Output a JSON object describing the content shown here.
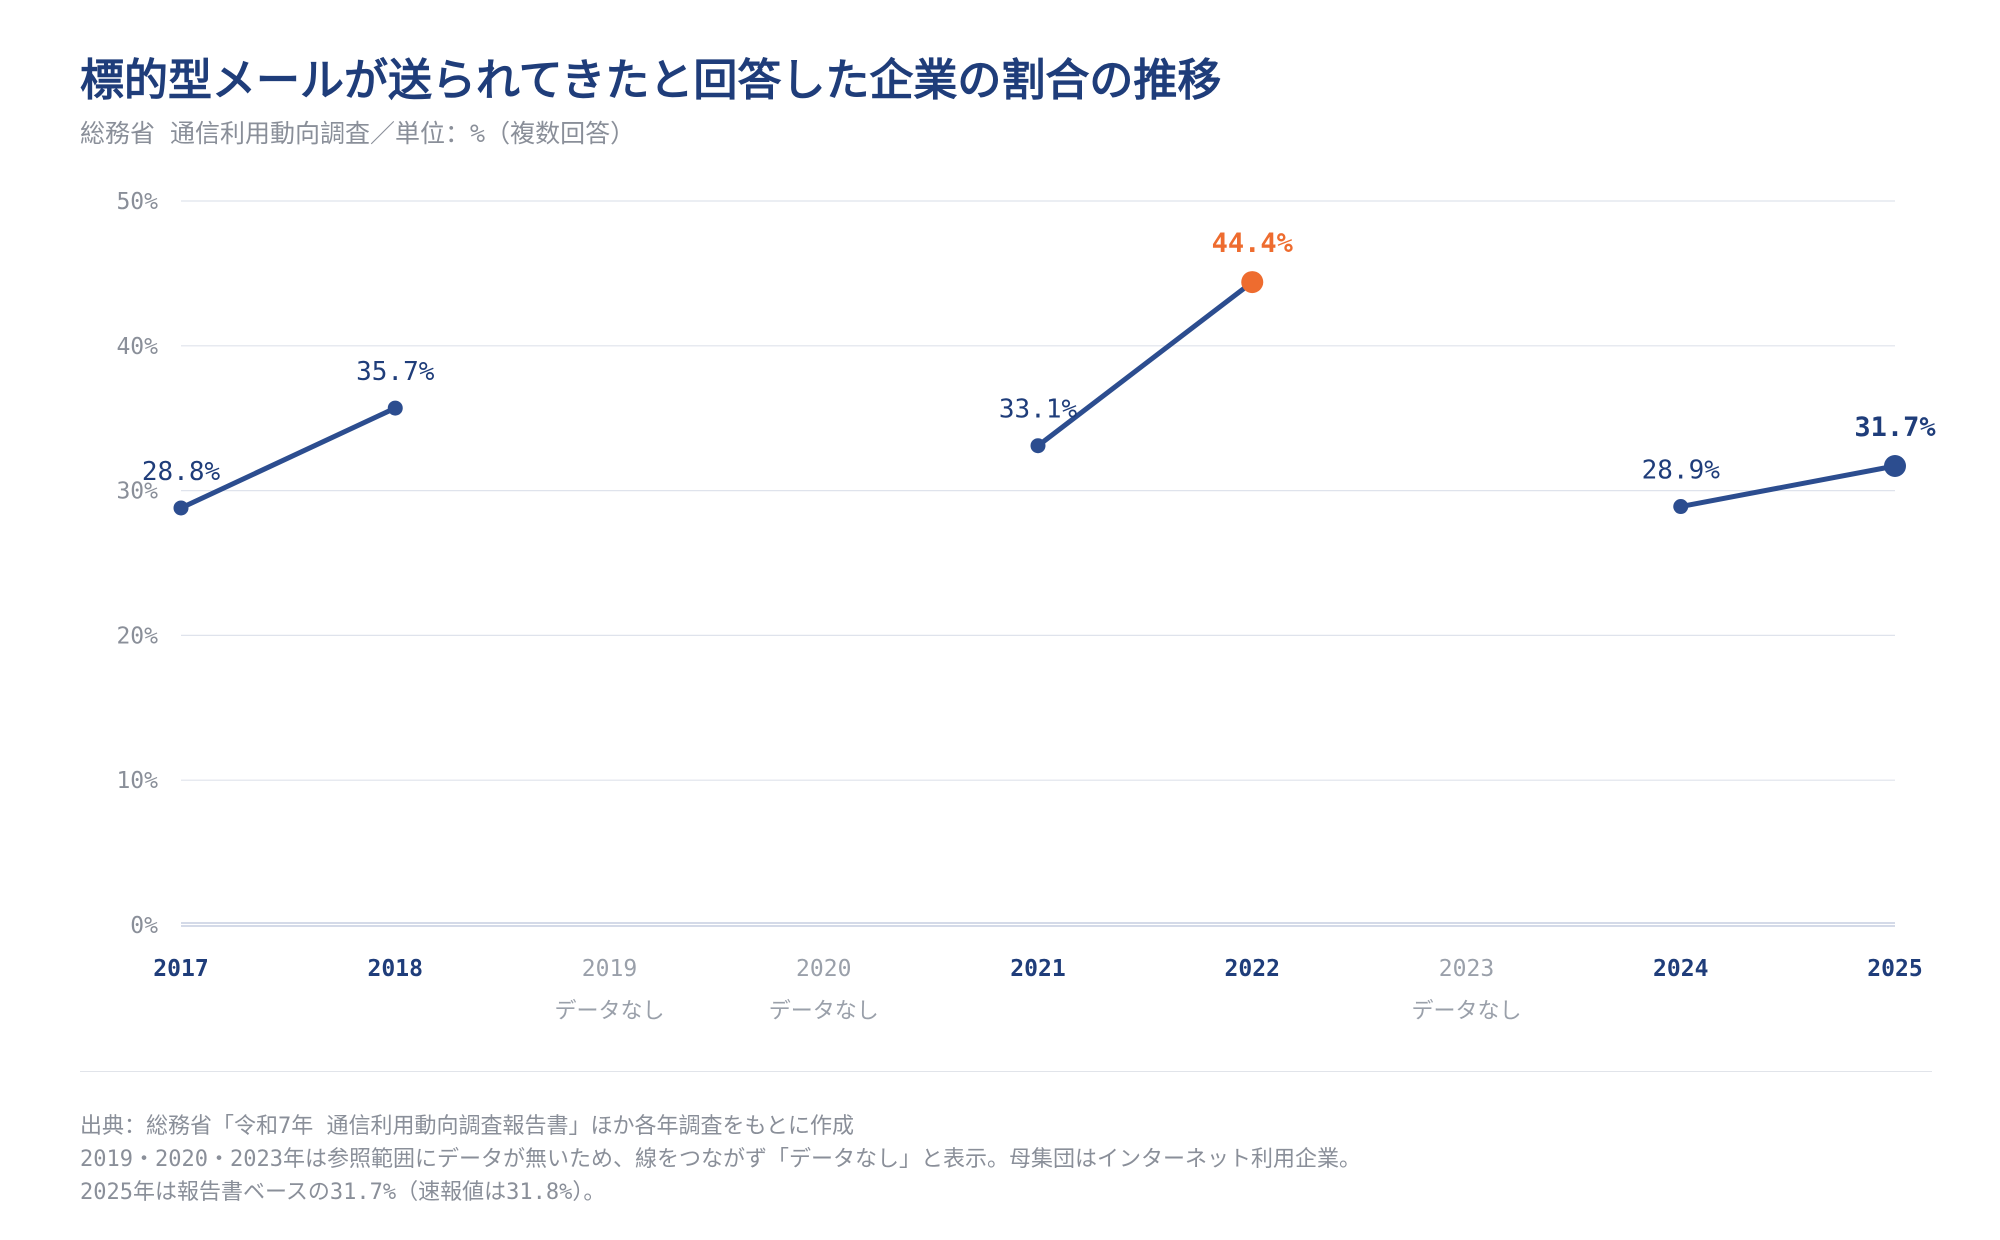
{
  "header": {
    "title": "標的型メールが送られてきたと回答した企業の割合の推移",
    "subtitle": "総務省 通信利用動向調査／単位：%（複数回答）"
  },
  "colors": {
    "line": "#2c4d8f",
    "highlight": "#ee6c2f",
    "title": "#1f3d7a",
    "axis_text": "#8a8f99",
    "grid": "#dfe3ec"
  },
  "chart_data": {
    "type": "line",
    "title": "標的型メールが送られてきたと回答した企業の割合の推移",
    "subtitle": "総務省 通信利用動向調査／単位：%（複数回答）",
    "categories": [
      "2017",
      "2018",
      "2019",
      "2020",
      "2021",
      "2022",
      "2023",
      "2024",
      "2025"
    ],
    "values": [
      28.8,
      35.7,
      null,
      null,
      33.1,
      44.4,
      null,
      28.9,
      31.7
    ],
    "data_labels": [
      "28.8%",
      "35.7%",
      "",
      "",
      "33.1%",
      "44.4%",
      "",
      "28.9%",
      "31.7%"
    ],
    "segments": [
      [
        "2017",
        "2018"
      ],
      [
        "2021",
        "2022"
      ],
      [
        "2024",
        "2025"
      ]
    ],
    "highlight_max": "2022",
    "emphasized_latest": "2025",
    "no_data_label": "データなし",
    "no_data_categories": [
      "2019",
      "2020",
      "2023"
    ],
    "yticks": [
      0,
      10,
      20,
      30,
      40,
      50
    ],
    "ytick_labels": [
      "0%",
      "10%",
      "20%",
      "30%",
      "40%",
      "50%"
    ],
    "ylim": [
      0,
      50
    ],
    "grid": true,
    "legend": "none"
  },
  "footer": {
    "source": "出典：総務省「令和7年 通信利用動向調査報告書」ほか各年調査をもとに作成",
    "note1": "2019・2020・2023年は参照範囲にデータが無いため、線をつながず「データなし」と表示。母集団はインターネット利用企業。",
    "note2": "2025年は報告書ベースの31.7%（速報値は31.8%）。"
  }
}
